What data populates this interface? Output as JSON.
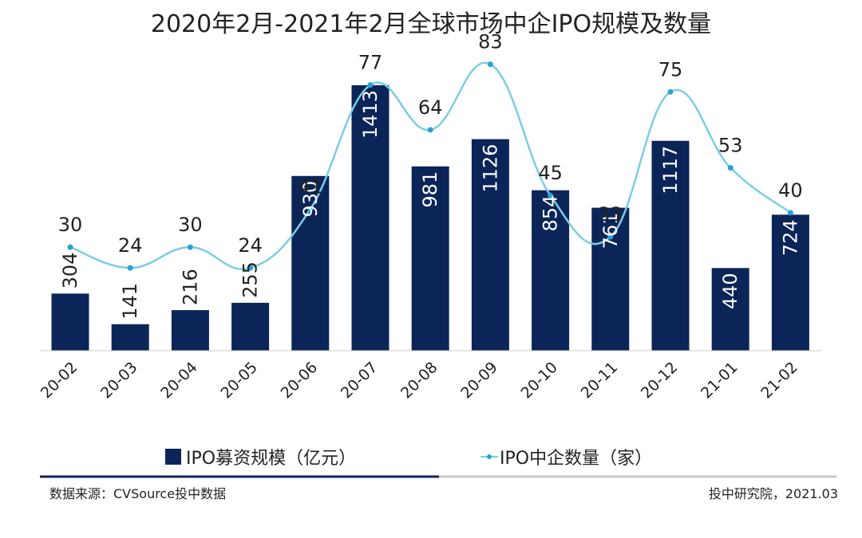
{
  "chart_data": {
    "type": "bar+line",
    "title": "2020年2月-2021年2月全球市场中企IPO规模及数量",
    "categories": [
      "20-02",
      "20-03",
      "20-04",
      "20-05",
      "20-06",
      "20-07",
      "20-08",
      "20-09",
      "20-10",
      "20-11",
      "20-12",
      "21-01",
      "21-02"
    ],
    "series": [
      {
        "name": "IPO募资规模（亿元）",
        "kind": "bar",
        "color": "#0b2559",
        "values": [
          304,
          141,
          216,
          255,
          930,
          1413,
          981,
          1126,
          854,
          761,
          1117,
          440,
          724
        ]
      },
      {
        "name": "IPO中企数量（家）",
        "kind": "line",
        "color": "#7ccde6",
        "values": [
          30,
          24,
          30,
          24,
          41,
          77,
          64,
          83,
          45,
          33,
          75,
          53,
          40
        ]
      }
    ],
    "bar_axis_range": [
      0,
      1400
    ],
    "line_axis_range": [
      0,
      85
    ],
    "legend_position": "bottom",
    "grid": false
  },
  "footer": {
    "source": "数据来源：CVSource投中数据",
    "credit": "投中研究院，2021.03"
  }
}
